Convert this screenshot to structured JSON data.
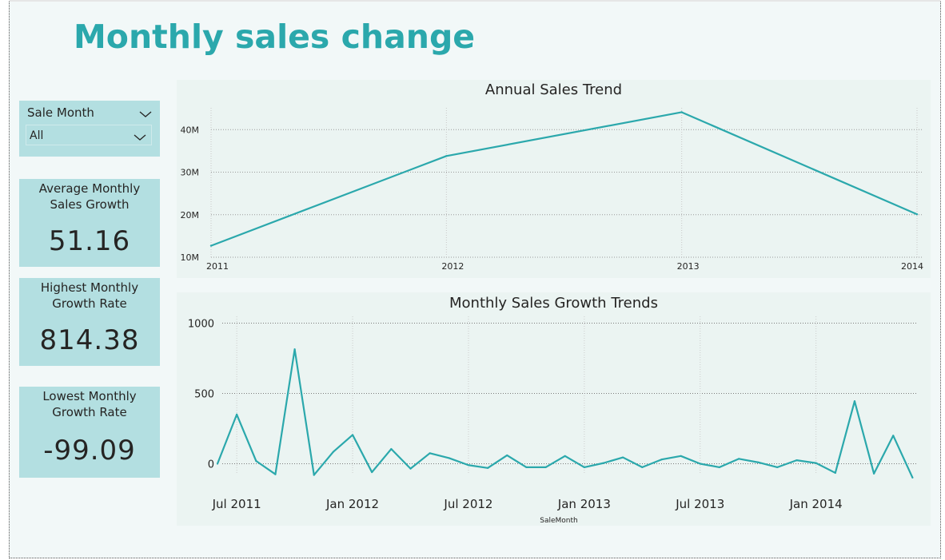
{
  "page": {
    "title": "Monthly sales change",
    "accent_color": "#2ba8ac"
  },
  "slicer": {
    "label": "Sale Month",
    "selected": "All",
    "icon": "chevron-down-icon"
  },
  "cards": [
    {
      "label": "Average Monthly Sales Growth",
      "value": "51.16"
    },
    {
      "label": "Highest Monthly Growth Rate",
      "value": "814.38"
    },
    {
      "label": "Lowest Monthly Growth Rate",
      "value": "-99.09"
    }
  ],
  "chart_data": [
    {
      "type": "line",
      "title": "Annual Sales Trend",
      "x": [
        "2011",
        "2012",
        "2013",
        "2014"
      ],
      "values": [
        12700000,
        33800000,
        44100000,
        20100000
      ],
      "yticks": [
        "10M",
        "20M",
        "30M",
        "40M"
      ],
      "ylim": [
        10000000,
        44000000
      ],
      "grid": true,
      "color": "#2ba8ac"
    },
    {
      "type": "line",
      "title": "Monthly Sales Growth Trends",
      "xlabel": "SaleMonth",
      "xticks": [
        "Jul 2011",
        "Jan 2012",
        "Jul 2012",
        "Jan 2013",
        "Jul 2013",
        "Jan 2014"
      ],
      "x_months_start": "2011-06",
      "values": [
        0,
        350,
        20,
        -75,
        814,
        -80,
        85,
        205,
        -60,
        105,
        -35,
        75,
        40,
        -10,
        -30,
        60,
        -25,
        -25,
        55,
        -25,
        5,
        45,
        -25,
        30,
        55,
        0,
        -25,
        35,
        10,
        -25,
        25,
        5,
        -65,
        445,
        -70,
        200,
        -99
      ],
      "yticks": [
        "0",
        "500",
        "1000"
      ],
      "ylim": [
        -100,
        1000
      ],
      "grid": true,
      "color": "#2ba8ac"
    }
  ]
}
